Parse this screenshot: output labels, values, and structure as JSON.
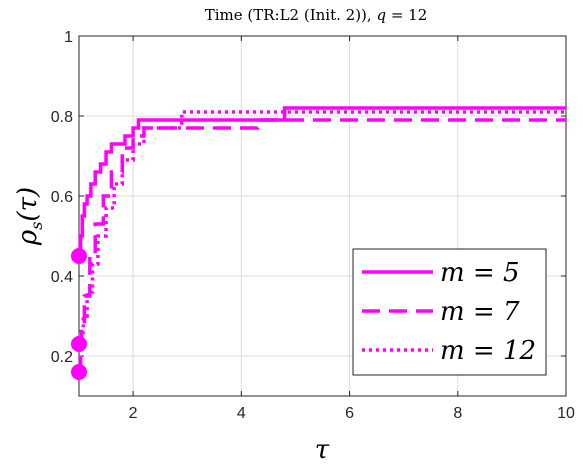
{
  "chart_data": {
    "type": "line",
    "title": "Time (TR:L2 (Init. 2)), q = 12",
    "xlabel": "τ",
    "ylabel": "ρ_s(τ)",
    "xlim": [
      1,
      10
    ],
    "ylim": [
      0.1,
      1.0
    ],
    "xticks": [
      2,
      4,
      6,
      8,
      10
    ],
    "yticks": [
      0.2,
      0.4,
      0.6,
      0.8,
      1
    ],
    "grid": true,
    "legend_position": "bottom-right",
    "series": [
      {
        "name": "m = 5",
        "style": "solid",
        "color": "#ff00ff",
        "start_marker": [
          1.0,
          0.45
        ],
        "x": [
          1.0,
          1.03,
          1.06,
          1.1,
          1.15,
          1.22,
          1.3,
          1.4,
          1.5,
          1.6,
          1.7,
          1.85,
          2.0,
          2.1,
          4.8,
          10.0
        ],
        "y": [
          0.45,
          0.5,
          0.55,
          0.58,
          0.6,
          0.63,
          0.66,
          0.68,
          0.71,
          0.73,
          0.73,
          0.75,
          0.77,
          0.79,
          0.82,
          0.82
        ]
      },
      {
        "name": "m = 7",
        "style": "dashed",
        "color": "#ff00ff",
        "start_marker": [
          1.0,
          0.16
        ],
        "x": [
          1.0,
          1.03,
          1.05,
          1.1,
          1.2,
          1.3,
          1.45,
          1.6,
          1.8,
          2.0,
          2.2,
          4.2,
          4.3,
          10.0
        ],
        "y": [
          0.16,
          0.22,
          0.27,
          0.35,
          0.45,
          0.53,
          0.6,
          0.66,
          0.72,
          0.75,
          0.77,
          0.77,
          0.79,
          0.79
        ]
      },
      {
        "name": "m = 12",
        "style": "dotted",
        "color": "#ff00ff",
        "start_marker": [
          1.0,
          0.23
        ],
        "x": [
          1.0,
          1.04,
          1.08,
          1.15,
          1.25,
          1.35,
          1.5,
          1.65,
          1.8,
          2.0,
          2.2,
          2.9,
          4.9,
          10.0
        ],
        "y": [
          0.23,
          0.26,
          0.3,
          0.36,
          0.43,
          0.5,
          0.57,
          0.63,
          0.69,
          0.73,
          0.77,
          0.81,
          0.81,
          0.81
        ]
      }
    ]
  }
}
